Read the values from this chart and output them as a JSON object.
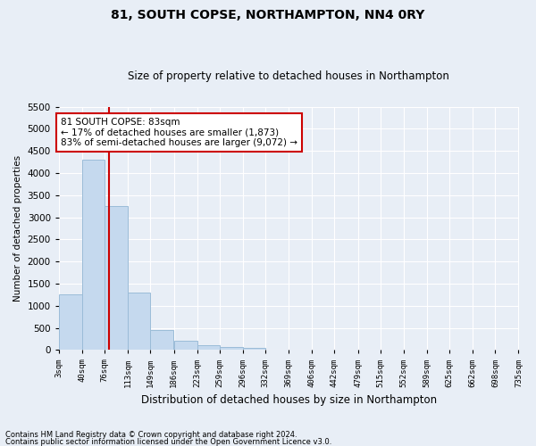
{
  "title": "81, SOUTH COPSE, NORTHAMPTON, NN4 0RY",
  "subtitle": "Size of property relative to detached houses in Northampton",
  "xlabel": "Distribution of detached houses by size in Northampton",
  "ylabel": "Number of detached properties",
  "footnote1": "Contains HM Land Registry data © Crown copyright and database right 2024.",
  "footnote2": "Contains public sector information licensed under the Open Government Licence v3.0.",
  "annotation_title": "81 SOUTH COPSE: 83sqm",
  "annotation_line1": "← 17% of detached houses are smaller (1,873)",
  "annotation_line2": "83% of semi-detached houses are larger (9,072) →",
  "property_size": 83,
  "bar_color": "#c5d9ee",
  "bar_edge_color": "#9bbcd8",
  "vline_color": "#cc0000",
  "background_color": "#e8eef6",
  "annotation_box_color": "#ffffff",
  "annotation_box_edge": "#cc0000",
  "bins": [
    3,
    40,
    76,
    113,
    149,
    186,
    223,
    259,
    296,
    332,
    369,
    406,
    442,
    479,
    515,
    552,
    589,
    625,
    662,
    698,
    735
  ],
  "bin_labels": [
    "3sqm",
    "40sqm",
    "76sqm",
    "113sqm",
    "149sqm",
    "186sqm",
    "223sqm",
    "259sqm",
    "296sqm",
    "332sqm",
    "369sqm",
    "406sqm",
    "442sqm",
    "479sqm",
    "515sqm",
    "552sqm",
    "589sqm",
    "625sqm",
    "662sqm",
    "698sqm",
    "735sqm"
  ],
  "counts": [
    1250,
    4300,
    3250,
    1300,
    450,
    200,
    100,
    70,
    55,
    10,
    5,
    3,
    2,
    1,
    1,
    0,
    0,
    0,
    0,
    0
  ],
  "ylim": [
    0,
    5500
  ],
  "yticks": [
    0,
    500,
    1000,
    1500,
    2000,
    2500,
    3000,
    3500,
    4000,
    4500,
    5000,
    5500
  ]
}
